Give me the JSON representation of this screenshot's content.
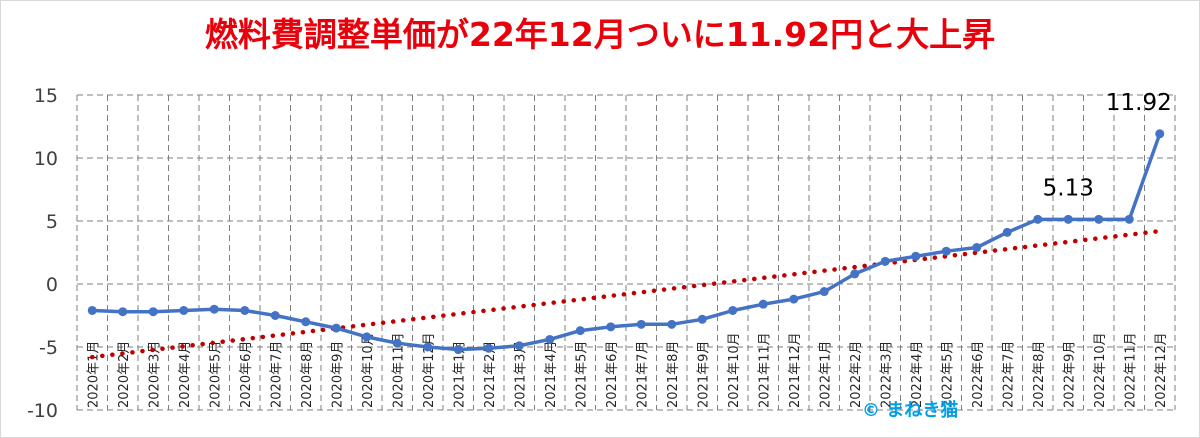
{
  "title": "燃料費調整単価が22年12月ついに11.92円と大上昇",
  "credit": "©  まねき猫",
  "colors": {
    "title": "#e8000b",
    "series": "#4472c4",
    "trend": "#c00000",
    "grid": "#7f7f7f",
    "credit": "#00a0e9"
  },
  "chart_data": {
    "type": "line",
    "title": "燃料費調整単価が22年12月ついに11.92円と大上昇",
    "xlabel": "",
    "ylabel": "",
    "ylim": [
      -10,
      15
    ],
    "yticks": [
      15,
      10,
      5,
      0,
      -5,
      -10
    ],
    "grid": true,
    "legend": "none",
    "categories": [
      "2020年1月",
      "2020年2月",
      "2020年3月",
      "2020年4月",
      "2020年5月",
      "2020年6月",
      "2020年7月",
      "2020年8月",
      "2020年9月",
      "2020年10月",
      "2020年11月",
      "2020年12月",
      "2021年1月",
      "2021年2月",
      "2021年3月",
      "2021年4月",
      "2021年5月",
      "2021年6月",
      "2021年7月",
      "2021年8月",
      "2021年9月",
      "2021年10月",
      "2021年11月",
      "2021年12月",
      "2022年1月",
      "2022年2月",
      "2022年3月",
      "2022年4月",
      "2022年5月",
      "2022年6月",
      "2022年7月",
      "2022年8月",
      "2022年9月",
      "2022年10月",
      "2022年11月",
      "2022年12月"
    ],
    "series": [
      {
        "values": [
          -2.1,
          -2.2,
          -2.2,
          -2.1,
          -2.0,
          -2.1,
          -2.5,
          -3.0,
          -3.5,
          -4.2,
          -4.7,
          -5.0,
          -5.2,
          -5.1,
          -4.9,
          -4.4,
          -3.7,
          -3.4,
          -3.2,
          -3.2,
          -2.8,
          -2.1,
          -1.6,
          -1.2,
          -0.6,
          0.8,
          1.8,
          2.2,
          2.6,
          2.9,
          4.1,
          5.13,
          5.13,
          5.13,
          5.13,
          11.92
        ]
      }
    ],
    "trendline": {
      "style": "dotted linear",
      "start": -5.8,
      "end": 4.2
    },
    "data_labels": [
      {
        "index": 32,
        "text": "5.13"
      },
      {
        "index": 35,
        "text": "11.92"
      }
    ]
  }
}
